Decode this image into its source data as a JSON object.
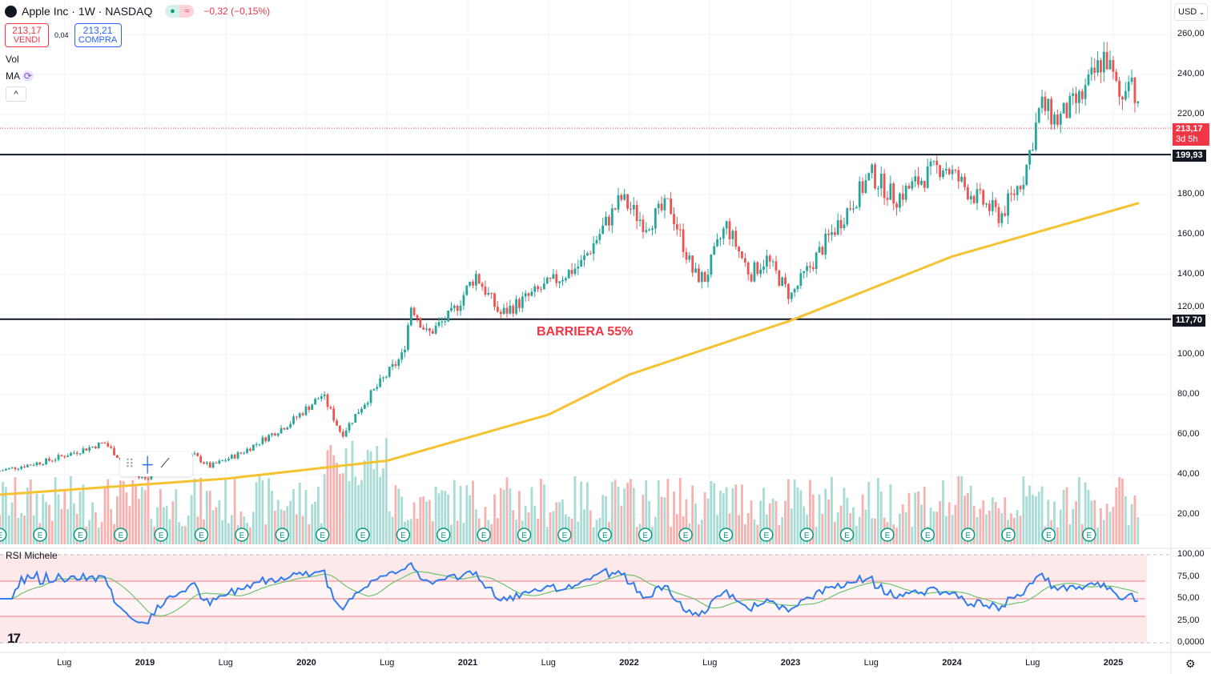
{
  "header": {
    "symbol": "Apple Inc · 1W · NASDAQ",
    "change": "−0,32 (−0,15%)",
    "market_status_icon": "market-open-dot",
    "delay_icon": "approx-icon"
  },
  "trade": {
    "sell_price": "213,17",
    "sell_label": "VENDI",
    "spread": "0,04",
    "buy_price": "213,21",
    "buy_label": "COMPRA"
  },
  "indicators": {
    "vol": "Vol",
    "ma": "MA",
    "rsi": "RSI Michele",
    "collapse": "^"
  },
  "currency": "USD",
  "annotation": "BARRIERA 55%",
  "price_tags": {
    "last": "213,17",
    "countdown": "3d 5h",
    "line1": "199,93",
    "line2": "117,70"
  },
  "colors": {
    "up": "#26a69a",
    "down": "#ef5350",
    "ma": "#f5c232",
    "rsi": "#2f7cf0",
    "rsi_ma": "#6fc36f",
    "hline": "#131722"
  },
  "chart_data": {
    "type": "candlestick",
    "title": "Apple Inc · 1W · NASDAQ",
    "ylim": [
      20,
      265
    ],
    "yticks": [
      "260,00",
      "240,00",
      "220,00",
      "200,00",
      "180,00",
      "160,00",
      "140,00",
      "120,00",
      "100,00",
      "80,00",
      "60,00",
      "40,00",
      "20,00"
    ],
    "rsi_ticks": [
      "100,00",
      "75,00",
      "50,00",
      "25,00",
      "0,0000"
    ],
    "xticks": [
      "Lug",
      "2019",
      "Lug",
      "2020",
      "Lug",
      "2021",
      "Lug",
      "2022",
      "Lug",
      "2023",
      "Lug",
      "2024",
      "Lug",
      "2025"
    ],
    "xtick_years": [
      2018.5,
      2019,
      2019.5,
      2020,
      2020.5,
      2021,
      2021.5,
      2022,
      2022.5,
      2023,
      2023.5,
      2024,
      2024.5,
      2025
    ],
    "price_path": [
      [
        2018.1,
        42
      ],
      [
        2018.4,
        47
      ],
      [
        2018.75,
        56
      ],
      [
        2018.95,
        39
      ],
      [
        2019.0,
        38
      ],
      [
        2019.3,
        50
      ],
      [
        2019.4,
        44
      ],
      [
        2019.6,
        51
      ],
      [
        2019.9,
        66
      ],
      [
        2020.1,
        80
      ],
      [
        2020.22,
        60
      ],
      [
        2020.35,
        75
      ],
      [
        2020.6,
        100
      ],
      [
        2020.65,
        125
      ],
      [
        2020.75,
        110
      ],
      [
        2020.9,
        120
      ],
      [
        2021.05,
        140
      ],
      [
        2021.2,
        120
      ],
      [
        2021.5,
        135
      ],
      [
        2021.7,
        145
      ],
      [
        2021.95,
        178
      ],
      [
        2022.1,
        165
      ],
      [
        2022.25,
        175
      ],
      [
        2022.4,
        140
      ],
      [
        2022.47,
        138
      ],
      [
        2022.6,
        165
      ],
      [
        2022.75,
        140
      ],
      [
        2022.85,
        148
      ],
      [
        2023.0,
        129
      ],
      [
        2023.25,
        160
      ],
      [
        2023.5,
        190
      ],
      [
        2023.65,
        178
      ],
      [
        2023.85,
        190
      ],
      [
        2023.95,
        195
      ],
      [
        2024.1,
        182
      ],
      [
        2024.3,
        169
      ],
      [
        2024.45,
        190
      ],
      [
        2024.55,
        225
      ],
      [
        2024.65,
        217
      ],
      [
        2024.8,
        228
      ],
      [
        2024.95,
        250
      ],
      [
        2025.05,
        225
      ],
      [
        2025.1,
        245
      ],
      [
        2025.17,
        213.17
      ]
    ],
    "ma_path": [
      [
        2018.1,
        30
      ],
      [
        2019.5,
        38
      ],
      [
        2020.5,
        47
      ],
      [
        2021.5,
        70
      ],
      [
        2022.0,
        90
      ],
      [
        2023.0,
        117
      ],
      [
        2024.0,
        149
      ],
      [
        2025.17,
        176
      ]
    ],
    "horizontal_lines": [
      199.93,
      117.7
    ],
    "rsi_levels": [
      70,
      50,
      30
    ]
  }
}
